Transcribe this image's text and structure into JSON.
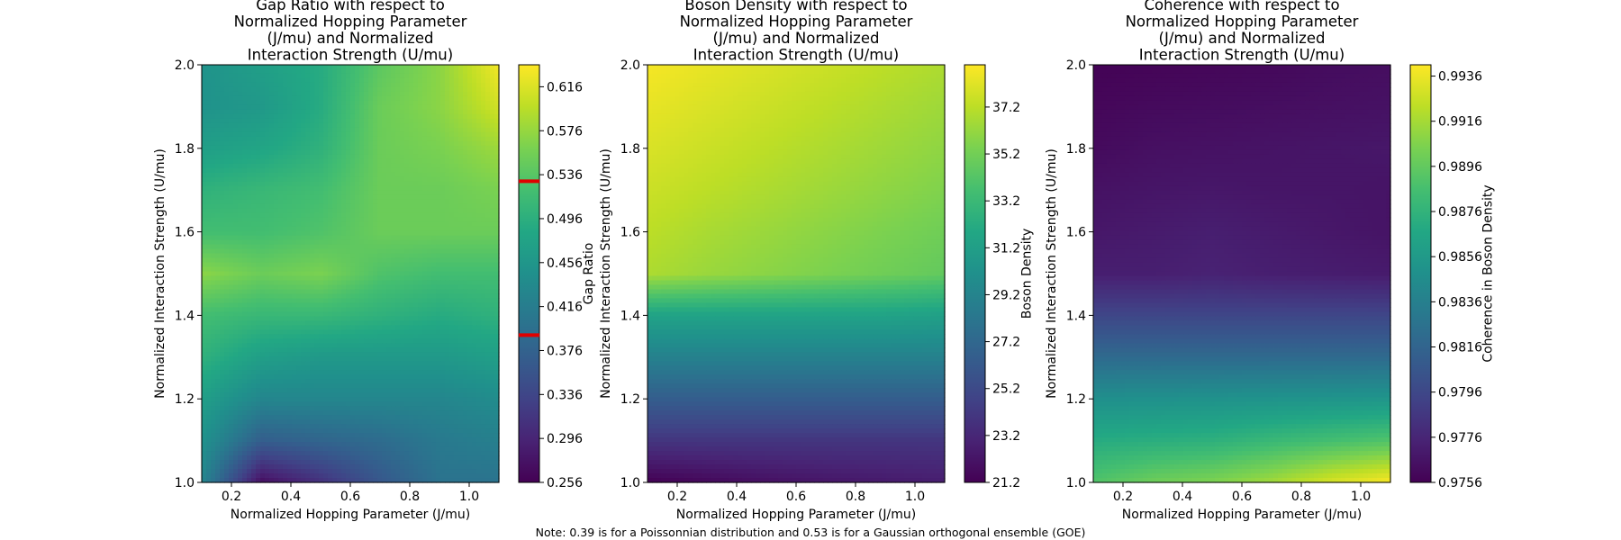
{
  "note": "Note: 0.39 is for a Poissonnian distribution and 0.53 is for a Gaussian orthogonal ensemble (GOE)",
  "note_color": "#ff0000",
  "chart_data": [
    {
      "type": "heatmap",
      "title": [
        "Gap Ratio with respect to",
        "Normalized Hopping Parameter",
        "(J/mu) and Normalized",
        "Interaction Strength (U/mu)"
      ],
      "xlabel": "Normalized Hopping Parameter (J/mu)",
      "ylabel": "Normalized Interaction Strength (U/mu)",
      "xlim": [
        0.1,
        1.1
      ],
      "ylim": [
        1.0,
        2.0
      ],
      "xticks": [
        "0.2",
        "0.4",
        "0.6",
        "0.8",
        "1.0"
      ],
      "yticks": [
        "1.0",
        "1.2",
        "1.4",
        "1.6",
        "1.8",
        "2.0"
      ],
      "colormap": "viridis",
      "colorbar": {
        "label": "Gap Ratio",
        "range": [
          0.256,
          0.636
        ],
        "ticks": [
          "0.256",
          "0.296",
          "0.336",
          "0.376",
          "0.416",
          "0.456",
          "0.496",
          "0.536",
          "0.576",
          "0.616"
        ],
        "reference_lines": [
          0.39,
          0.53
        ],
        "reference_color": "#e00000"
      },
      "x": [
        0.1,
        0.3,
        0.5,
        0.7,
        0.9,
        1.1
      ],
      "y": [
        1.0,
        1.1,
        1.2,
        1.3,
        1.4,
        1.5,
        1.6,
        1.7,
        1.8,
        1.9,
        2.0
      ],
      "z": [
        [
          0.43,
          0.27,
          0.31,
          0.36,
          0.4,
          0.4
        ],
        [
          0.45,
          0.37,
          0.38,
          0.39,
          0.41,
          0.42
        ],
        [
          0.47,
          0.43,
          0.43,
          0.43,
          0.43,
          0.44
        ],
        [
          0.5,
          0.47,
          0.46,
          0.46,
          0.46,
          0.47
        ],
        [
          0.52,
          0.51,
          0.51,
          0.5,
          0.49,
          0.5
        ],
        [
          0.57,
          0.55,
          0.56,
          0.53,
          0.52,
          0.52
        ],
        [
          0.52,
          0.52,
          0.53,
          0.55,
          0.55,
          0.55
        ],
        [
          0.5,
          0.51,
          0.52,
          0.55,
          0.55,
          0.56
        ],
        [
          0.47,
          0.48,
          0.5,
          0.55,
          0.56,
          0.58
        ],
        [
          0.45,
          0.46,
          0.49,
          0.55,
          0.57,
          0.61
        ],
        [
          0.45,
          0.47,
          0.49,
          0.54,
          0.57,
          0.63
        ]
      ]
    },
    {
      "type": "heatmap",
      "title": [
        "Boson Density with respect to",
        "Normalized Hopping Parameter",
        "(J/mu) and Normalized",
        "Interaction Strength (U/mu)"
      ],
      "xlabel": "Normalized Hopping Parameter (J/mu)",
      "ylabel": "Normalized Interaction Strength (U/mu)",
      "xlim": [
        0.1,
        1.1
      ],
      "ylim": [
        1.0,
        2.0
      ],
      "xticks": [
        "0.2",
        "0.4",
        "0.6",
        "0.8",
        "1.0"
      ],
      "yticks": [
        "1.0",
        "1.2",
        "1.4",
        "1.6",
        "1.8",
        "2.0"
      ],
      "colormap": "viridis",
      "colorbar": {
        "label": "Boson Density",
        "range": [
          21.2,
          39.0
        ],
        "ticks": [
          "21.2",
          "23.2",
          "25.2",
          "27.2",
          "29.2",
          "31.2",
          "33.2",
          "35.2",
          "37.2"
        ]
      },
      "x": [
        0.1,
        0.3,
        0.5,
        0.7,
        0.9,
        1.1
      ],
      "y": [
        1.0,
        1.1,
        1.2,
        1.3,
        1.4,
        1.5,
        1.6,
        1.7,
        1.8,
        1.9,
        2.0
      ],
      "z": [
        [
          21.2,
          21.6,
          22.0,
          22.3,
          22.5,
          22.7
        ],
        [
          24.0,
          24.0,
          24.0,
          24.0,
          24.0,
          24.0
        ],
        [
          26.5,
          26.5,
          26.5,
          26.5,
          26.5,
          26.5
        ],
        [
          29.0,
          29.0,
          29.0,
          29.0,
          29.0,
          29.0
        ],
        [
          31.5,
          31.5,
          31.5,
          31.5,
          31.5,
          31.3
        ],
        [
          36.8,
          36.3,
          35.9,
          35.5,
          35.1,
          34.7
        ],
        [
          37.2,
          36.7,
          36.3,
          35.9,
          35.5,
          35.1
        ],
        [
          37.6,
          37.2,
          36.8,
          36.4,
          36.0,
          35.6
        ],
        [
          38.0,
          37.6,
          37.2,
          36.8,
          36.4,
          36.0
        ],
        [
          38.4,
          38.0,
          37.6,
          37.2,
          36.8,
          36.4
        ],
        [
          38.8,
          38.4,
          38.0,
          37.6,
          37.2,
          36.8
        ]
      ]
    },
    {
      "type": "heatmap",
      "title": [
        "Coherence with respect to",
        "Normalized Hopping Parameter",
        "(J/mu) and Normalized",
        "Interaction Strength (U/mu)"
      ],
      "xlabel": "Normalized Hopping Parameter (J/mu)",
      "ylabel": "Normalized Interaction Strength (U/mu)",
      "xlim": [
        0.1,
        1.1
      ],
      "ylim": [
        1.0,
        2.0
      ],
      "xticks": [
        "0.2",
        "0.4",
        "0.6",
        "0.8",
        "1.0"
      ],
      "yticks": [
        "1.0",
        "1.2",
        "1.4",
        "1.6",
        "1.8",
        "2.0"
      ],
      "colormap": "viridis",
      "colorbar": {
        "label": "Coherence in Boson Density",
        "range": [
          0.9756,
          0.9941
        ],
        "ticks": [
          "0.9756",
          "0.9776",
          "0.9796",
          "0.9816",
          "0.9836",
          "0.9856",
          "0.9876",
          "0.9896",
          "0.9916",
          "0.9936"
        ]
      },
      "x": [
        0.1,
        0.3,
        0.5,
        0.7,
        0.9,
        1.1
      ],
      "y": [
        1.0,
        1.1,
        1.2,
        1.3,
        1.4,
        1.5,
        1.6,
        1.7,
        1.8,
        1.9,
        2.0
      ],
      "z": [
        [
          0.989,
          0.99,
          0.9905,
          0.9915,
          0.993,
          0.994
        ],
        [
          0.987,
          0.9872,
          0.9874,
          0.988,
          0.9885,
          0.989
        ],
        [
          0.9848,
          0.9849,
          0.985,
          0.9851,
          0.9852,
          0.9853
        ],
        [
          0.982,
          0.982,
          0.982,
          0.982,
          0.982,
          0.982
        ],
        [
          0.9795,
          0.9795,
          0.9795,
          0.9795,
          0.9795,
          0.9795
        ],
        [
          0.9772,
          0.9772,
          0.9774,
          0.9772,
          0.9771,
          0.977
        ],
        [
          0.9768,
          0.977,
          0.9772,
          0.977,
          0.9768,
          0.9766
        ],
        [
          0.9765,
          0.9767,
          0.9768,
          0.9767,
          0.9767,
          0.9766
        ],
        [
          0.9761,
          0.9764,
          0.9765,
          0.9766,
          0.9767,
          0.9768
        ],
        [
          0.9759,
          0.9761,
          0.9762,
          0.9763,
          0.9764,
          0.9765
        ],
        [
          0.9757,
          0.9758,
          0.9759,
          0.976,
          0.9762,
          0.9763
        ]
      ]
    }
  ]
}
